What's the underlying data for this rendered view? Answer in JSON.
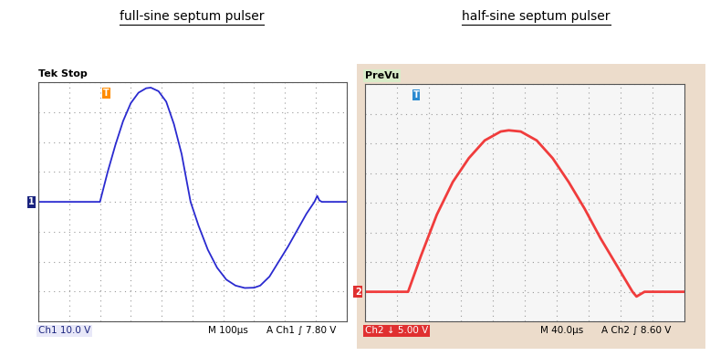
{
  "chart_data": [
    {
      "type": "line",
      "title": "full-sine septum pulser",
      "color": "#2a2ad0",
      "x": [
        0,
        100,
        200,
        225,
        250,
        275,
        300,
        325,
        350,
        365,
        390,
        415,
        440,
        465,
        494,
        520,
        550,
        580,
        610,
        640,
        670,
        700,
        720,
        750,
        780,
        810,
        840,
        870,
        896,
        905,
        912,
        920,
        1000
      ],
      "values": [
        0,
        0,
        0,
        10,
        19,
        27,
        33,
        36.5,
        38,
        38.2,
        37,
        33.5,
        26,
        16,
        0,
        -8,
        -16,
        -22,
        -26,
        -28,
        -28.8,
        -28.7,
        -28,
        -25,
        -20,
        -15,
        -9.5,
        -4,
        0,
        2,
        0.5,
        0,
        0
      ],
      "xlim": [
        0,
        1000
      ],
      "xticks": [
        0,
        100,
        200,
        300,
        400,
        500,
        600,
        700,
        800,
        900,
        1000
      ],
      "ylim": [
        -40,
        40
      ],
      "yticks": [
        -40,
        -30,
        -20,
        -10,
        0,
        10,
        20,
        30,
        40
      ],
      "grid": true,
      "tick_labels": false,
      "annotations": [
        "Tek Stop",
        "1",
        "T",
        "Ch1 10.0 V",
        "M 100µs",
        "A Ch1 ∫ 7.80 V"
      ]
    },
    {
      "type": "line",
      "title": "half-sine septum pulser",
      "color": "#f03c3c",
      "x": [
        0,
        54,
        70,
        90,
        110,
        130,
        150,
        170,
        180,
        195,
        215,
        235,
        255,
        275,
        295,
        315,
        335,
        340,
        350,
        400
      ],
      "values": [
        0,
        0,
        6,
        13,
        18.5,
        22.5,
        25.5,
        27,
        27.2,
        27,
        25.5,
        22.5,
        18.5,
        14,
        9,
        4.5,
        0,
        -0.8,
        0,
        0
      ],
      "xlim": [
        0,
        400
      ],
      "xticks": [
        0,
        40,
        80,
        120,
        160,
        200,
        240,
        280,
        320,
        360,
        400
      ],
      "ylim": [
        -5,
        35
      ],
      "yticks": [
        -5,
        0,
        5,
        10,
        15,
        20,
        25,
        30,
        35
      ],
      "grid": true,
      "tick_labels": false,
      "annotations": [
        "PreVu",
        "2",
        "T",
        "Ch2 ↓ 5.00 V",
        "M 40.0µs",
        "A Ch2 ∫ 8.60 V"
      ]
    }
  ]
}
